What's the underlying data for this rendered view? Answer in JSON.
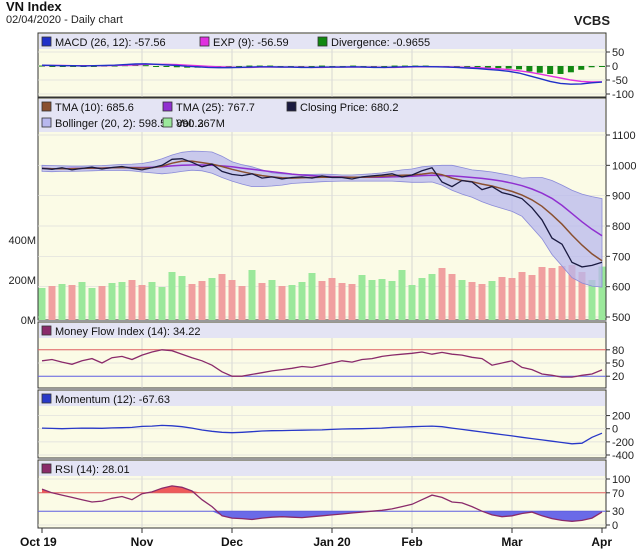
{
  "header": {
    "title": "VN Index",
    "subtitle": "02/04/2020 - Daily chart",
    "brand": "VCBS"
  },
  "colors": {
    "macd": "#2030c8",
    "exp": "#e030e0",
    "divergence": "#118811",
    "tma10": "#8a5030",
    "tma25": "#9030d0",
    "close": "#1a1a40",
    "bollinger": "#b8b8ee",
    "vol_up": "#9be89b",
    "vol_down": "#f0a0a0",
    "mfi": "#8a2a6a",
    "momentum": "#2838c8",
    "rsi": "#8a2a6a",
    "upper_line": "#e06060",
    "lower_line": "#6060e0",
    "panel_bg": "#fbfbe6",
    "legend_bg": "#e4e4f4"
  },
  "chart_data": [
    {
      "type": "line",
      "panel": "macd",
      "legend": [
        {
          "key": "macd",
          "text": "MACD (26, 12): -57.56"
        },
        {
          "key": "exp",
          "text": "EXP (9): -56.59"
        },
        {
          "key": "divergence",
          "text": "Divergence: -0.9655"
        }
      ],
      "yticks": [
        "50",
        "0",
        "-50",
        "-100"
      ],
      "ylim": [
        -100,
        50
      ],
      "series": [
        {
          "name": "MACD (26, 12)",
          "color_key": "macd",
          "values": [
            3,
            2,
            1,
            1,
            0,
            1,
            2,
            3,
            5,
            7,
            8,
            6,
            4,
            2,
            -1,
            -3,
            -5,
            -6,
            -6,
            -5,
            -4,
            -3,
            -3,
            -4,
            -4,
            -5,
            -5,
            -4,
            -4,
            -4,
            -3,
            -4,
            -5,
            -5,
            -4,
            -3,
            -2,
            -2,
            -3,
            -4,
            -5,
            -7,
            -9,
            -12,
            -15,
            -19,
            -25,
            -35,
            -45,
            -55,
            -62,
            -65,
            -64,
            -60,
            -57.56
          ]
        },
        {
          "name": "EXP (9)",
          "color_key": "exp",
          "values": [
            2,
            2,
            2,
            1,
            1,
            1,
            1,
            2,
            3,
            4,
            6,
            6,
            6,
            5,
            3,
            1,
            -1,
            -3,
            -4,
            -5,
            -5,
            -4,
            -4,
            -4,
            -4,
            -4,
            -5,
            -5,
            -4,
            -4,
            -4,
            -4,
            -4,
            -5,
            -5,
            -4,
            -3,
            -3,
            -3,
            -3,
            -4,
            -5,
            -6,
            -8,
            -10,
            -13,
            -17,
            -22,
            -29,
            -36,
            -43,
            -50,
            -55,
            -57,
            -56.59
          ]
        }
      ]
    },
    {
      "type": "line",
      "panel": "price",
      "legend": [
        {
          "key": "tma10",
          "text": "TMA (10): 685.6"
        },
        {
          "key": "tma25",
          "text": "TMA (25): 767.7"
        },
        {
          "key": "close",
          "text": "Closing Price: 680.2"
        },
        {
          "key": "bollinger",
          "text": "Bollinger (20, 2): 598.5 - 890.3"
        },
        {
          "key": "vol",
          "text": "Vol: 267M"
        }
      ],
      "yticks": [
        "1100",
        "1000",
        "900",
        "800",
        "700",
        "600",
        "500"
      ],
      "ylim": [
        500,
        1100
      ],
      "vol_ticks": [
        "400M",
        "200M",
        "0M"
      ],
      "vol_max": 800,
      "close": [
        990,
        987,
        992,
        985,
        990,
        994,
        988,
        993,
        996,
        990,
        985,
        992,
        1000,
        1020,
        1022,
        1010,
        995,
        1004,
        980,
        970,
        966,
        972,
        958,
        962,
        955,
        960,
        962,
        958,
        965,
        960,
        960,
        955,
        962,
        965,
        968,
        972,
        962,
        968,
        982,
        992,
        945,
        930,
        950,
        945,
        920,
        930,
        910,
        902,
        890,
        860,
        820,
        760,
        740,
        680,
        665,
        670,
        680.2
      ],
      "tma10": [
        990,
        989,
        989,
        989,
        990,
        991,
        991,
        992,
        993,
        992,
        991,
        992,
        997,
        1007,
        1014,
        1014,
        1009,
        1004,
        996,
        987,
        979,
        972,
        966,
        962,
        959,
        958,
        959,
        960,
        961,
        961,
        961,
        961,
        961,
        962,
        964,
        966,
        967,
        968,
        971,
        975,
        969,
        958,
        950,
        946,
        938,
        932,
        923,
        914,
        902,
        886,
        865,
        837,
        806,
        770,
        737,
        708,
        685.6
      ],
      "tma25": [
        990,
        989,
        989,
        990,
        990,
        991,
        991,
        992,
        993,
        993,
        993,
        994,
        995,
        998,
        1000,
        1001,
        1001,
        1000,
        998,
        995,
        991,
        987,
        983,
        979,
        975,
        971,
        968,
        966,
        964,
        963,
        962,
        961,
        961,
        961,
        961,
        962,
        963,
        964,
        966,
        967,
        966,
        965,
        963,
        960,
        957,
        953,
        948,
        941,
        933,
        922,
        908,
        891,
        868,
        841,
        814,
        789,
        767.7
      ],
      "boll_upper": [
        1000,
        999,
        998,
        997,
        997,
        998,
        999,
        1001,
        1003,
        1004,
        1006,
        1012,
        1022,
        1034,
        1043,
        1047,
        1046,
        1044,
        1030,
        1012,
        1002,
        995,
        985,
        975,
        972,
        970,
        970,
        970,
        971,
        970,
        968,
        968,
        970,
        972,
        975,
        980,
        985,
        988,
        995,
        998,
        1000,
        1000,
        993,
        985,
        982,
        978,
        972,
        966,
        958,
        960,
        960,
        950,
        935,
        918,
        905,
        897,
        890.3
      ],
      "boll_lower": [
        980,
        979,
        980,
        980,
        981,
        982,
        983,
        983,
        983,
        982,
        978,
        975,
        972,
        975,
        980,
        984,
        982,
        974,
        960,
        948,
        938,
        930,
        930,
        932,
        935,
        940,
        942,
        944,
        946,
        947,
        948,
        948,
        948,
        948,
        948,
        948,
        946,
        944,
        944,
        945,
        935,
        918,
        905,
        895,
        880,
        868,
        858,
        848,
        832,
        795,
        758,
        706,
        668,
        630,
        612,
        602,
        598.5
      ],
      "volume": [
        160,
        170,
        180,
        175,
        190,
        160,
        170,
        185,
        190,
        200,
        175,
        190,
        165,
        240,
        220,
        180,
        195,
        210,
        230,
        200,
        170,
        250,
        185,
        200,
        170,
        175,
        190,
        235,
        195,
        210,
        185,
        180,
        225,
        200,
        205,
        195,
        250,
        175,
        210,
        230,
        260,
        230,
        200,
        190,
        180,
        195,
        215,
        210,
        240,
        225,
        265,
        260,
        270,
        275,
        240,
        200,
        267
      ],
      "volume_up": [
        true,
        false,
        true,
        false,
        true,
        true,
        false,
        true,
        true,
        false,
        false,
        true,
        true,
        true,
        true,
        false,
        false,
        true,
        false,
        false,
        false,
        true,
        false,
        true,
        false,
        true,
        true,
        true,
        false,
        false,
        false,
        false,
        true,
        true,
        true,
        true,
        true,
        true,
        true,
        true,
        false,
        false,
        true,
        false,
        false,
        true,
        false,
        false,
        false,
        false,
        false,
        false,
        false,
        false,
        false,
        true,
        true
      ]
    },
    {
      "type": "line",
      "panel": "mfi",
      "legend": [
        {
          "key": "mfi",
          "text": "Money Flow Index (14): 34.22"
        }
      ],
      "yticks": [
        "80",
        "50",
        "20"
      ],
      "ylim": [
        0,
        100
      ],
      "upper": 80,
      "lower": 20,
      "values": [
        55,
        58,
        52,
        47,
        55,
        60,
        50,
        62,
        65,
        58,
        68,
        75,
        80,
        78,
        70,
        62,
        55,
        45,
        30,
        20,
        20,
        24,
        28,
        32,
        35,
        38,
        42,
        40,
        45,
        50,
        55,
        52,
        58,
        60,
        65,
        68,
        70,
        72,
        75,
        70,
        74,
        70,
        68,
        63,
        60,
        45,
        50,
        55,
        40,
        35,
        25,
        22,
        18,
        18,
        22,
        25,
        34.22
      ]
    },
    {
      "type": "line",
      "panel": "momentum",
      "legend": [
        {
          "key": "momentum",
          "text": "Momentum (12): -67.63"
        }
      ],
      "yticks": [
        "200",
        "0",
        "-200",
        "-400"
      ],
      "ylim": [
        -400,
        300
      ],
      "values": [
        10,
        5,
        0,
        5,
        10,
        8,
        6,
        12,
        15,
        20,
        35,
        40,
        50,
        45,
        30,
        10,
        -20,
        -40,
        -55,
        -60,
        -55,
        -45,
        -35,
        -30,
        -28,
        -25,
        -22,
        -20,
        -18,
        -10,
        -5,
        -2,
        0,
        5,
        10,
        20,
        25,
        30,
        35,
        40,
        30,
        10,
        -10,
        -30,
        -50,
        -70,
        -90,
        -110,
        -130,
        -150,
        -170,
        -190,
        -210,
        -230,
        -220,
        -130,
        -67.63
      ]
    },
    {
      "type": "area",
      "panel": "rsi",
      "legend": [
        {
          "key": "rsi",
          "text": "RSI (14): 28.01"
        }
      ],
      "yticks": [
        "100",
        "70",
        "30",
        "0"
      ],
      "ylim": [
        0,
        100
      ],
      "upper": 70,
      "lower": 30,
      "values": [
        78,
        70,
        65,
        60,
        55,
        50,
        52,
        58,
        62,
        55,
        68,
        72,
        80,
        85,
        82,
        74,
        55,
        40,
        20,
        15,
        14,
        12,
        15,
        17,
        18,
        17,
        16,
        18,
        20,
        22,
        24,
        26,
        28,
        30,
        32,
        35,
        40,
        45,
        55,
        65,
        60,
        50,
        48,
        40,
        30,
        22,
        18,
        20,
        25,
        28,
        20,
        14,
        10,
        8,
        10,
        15,
        28.01
      ]
    }
  ],
  "x_axis": {
    "labels": [
      "Oct 19",
      "Nov",
      "Dec",
      "Jan 20",
      "Feb",
      "Mar",
      "Apr"
    ],
    "label_index": [
      0,
      10,
      19,
      29,
      37,
      47,
      56
    ]
  }
}
